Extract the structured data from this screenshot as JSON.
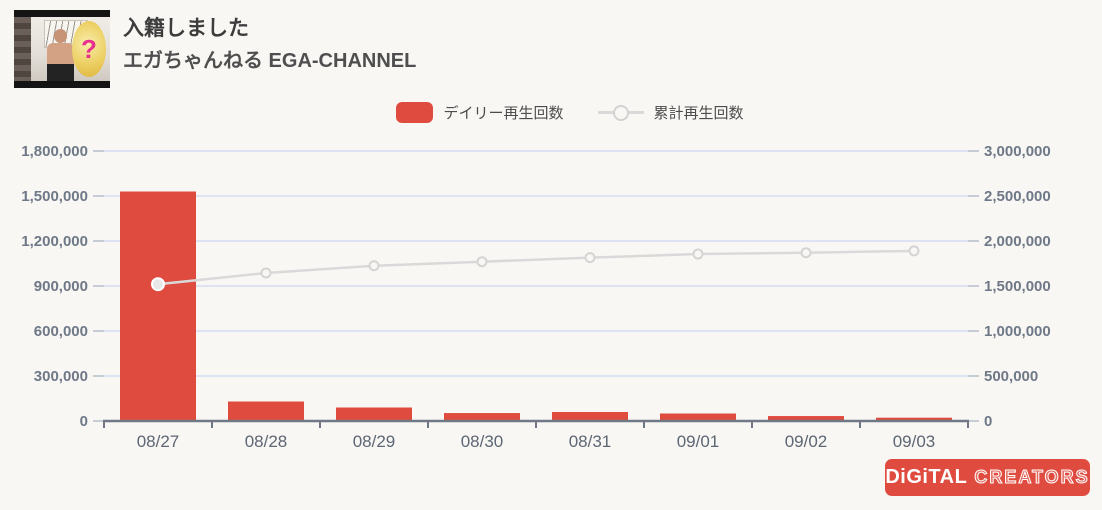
{
  "header": {
    "title": "入籍しました",
    "channel": "エガちゃんねる EGA-CHANNEL",
    "thumbnail": {
      "overlay_text": "?"
    }
  },
  "legend": {
    "daily_label": "デイリー再生回数",
    "cumulative_label": "累計再生回数"
  },
  "footer": {
    "logo_digital": "DiGiTAL",
    "logo_creators": "CREATORS"
  },
  "colors": {
    "accent_red": "#e04b3f",
    "line_gray": "#d9d9d9",
    "grid": "#dde3f0",
    "axis": "#6f7884",
    "outer_tick": "#c6ccd6",
    "tick_text": "#6e7887",
    "date_text": "#5d6673",
    "background": "#f8f7f4"
  },
  "chart_data": {
    "type": "combo",
    "categories": [
      "08/27",
      "08/28",
      "08/29",
      "08/30",
      "08/31",
      "09/01",
      "09/02",
      "09/03"
    ],
    "series": [
      {
        "name": "デイリー再生回数",
        "type": "bar",
        "yaxis": "left",
        "color": "#e04b3f",
        "values": [
          1530000,
          130000,
          90000,
          53000,
          60000,
          50000,
          33000,
          22000
        ]
      },
      {
        "name": "累計再生回数",
        "type": "line",
        "yaxis": "right",
        "color": "#d9d9d9",
        "marker": "open-circle",
        "values": [
          1520000,
          1645000,
          1725000,
          1770000,
          1815000,
          1855000,
          1870000,
          1890000
        ]
      }
    ],
    "left_axis": {
      "min": 0,
      "max": 1800000,
      "step": 300000,
      "tick_labels": [
        "0",
        "300,000",
        "600,000",
        "900,000",
        "1,200,000",
        "1,500,000",
        "1,800,000"
      ]
    },
    "right_axis": {
      "min": 0,
      "max": 3000000,
      "step": 500000,
      "tick_labels": [
        "0",
        "500,000",
        "1,000,000",
        "1,500,000",
        "2,000,000",
        "2,500,000",
        "3,000,000"
      ]
    },
    "grid": true,
    "legend_position": "top-center"
  }
}
